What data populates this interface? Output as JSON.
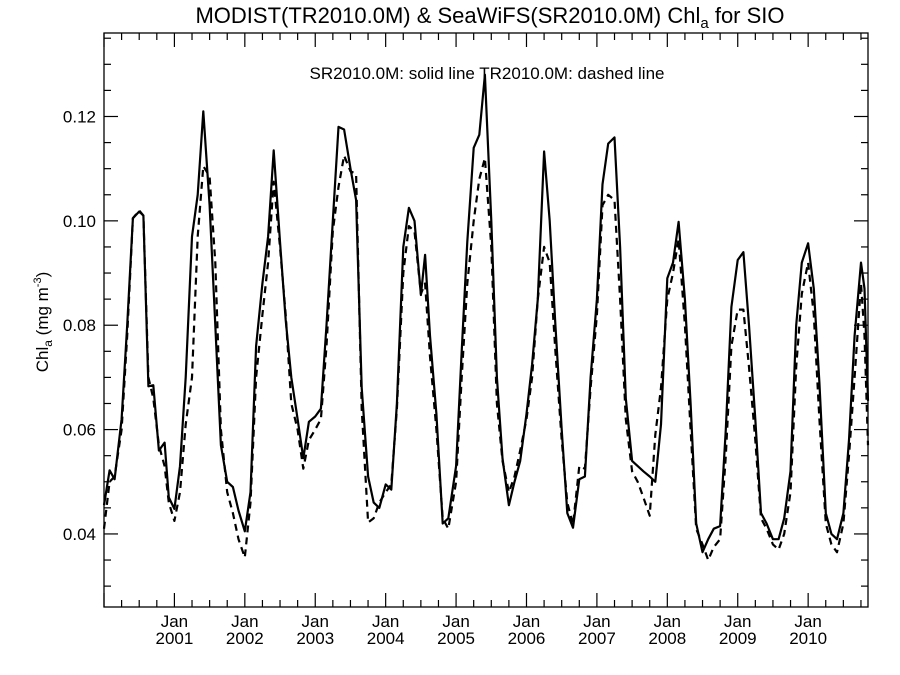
{
  "chart_data": {
    "type": "line",
    "title": {
      "main_prefix": "MODIST(TR2010.0M) & SeaWiFS(SR2010.0M)  Chl",
      "main_sub": "a",
      "main_suffix": " for SIO"
    },
    "legend_text": "SR2010.0M: solid line   TR2010.0M: dashed line",
    "ylabel": {
      "prefix": "Chl",
      "sub": "a",
      "mid": " (mg m",
      "sup": "-3",
      "suffix": ")"
    },
    "xlim": [
      2000.0,
      2010.85
    ],
    "ylim": [
      0.026,
      0.136
    ],
    "y_ticks": [
      0.04,
      0.06,
      0.08,
      0.1,
      0.12
    ],
    "y_tick_labels": [
      "0.04",
      "0.06",
      "0.08",
      "0.10",
      "0.12"
    ],
    "x_ticks": [
      {
        "x": 2001.0,
        "month": "Jan",
        "year": "2001"
      },
      {
        "x": 2002.0,
        "month": "Jan",
        "year": "2002"
      },
      {
        "x": 2003.0,
        "month": "Jan",
        "year": "2003"
      },
      {
        "x": 2004.0,
        "month": "Jan",
        "year": "2004"
      },
      {
        "x": 2005.0,
        "month": "Jan",
        "year": "2005"
      },
      {
        "x": 2006.0,
        "month": "Jan",
        "year": "2006"
      },
      {
        "x": 2007.0,
        "month": "Jan",
        "year": "2007"
      },
      {
        "x": 2008.0,
        "month": "Jan",
        "year": "2008"
      },
      {
        "x": 2009.0,
        "month": "Jan",
        "year": "2009"
      },
      {
        "x": 2010.0,
        "month": "Jan",
        "year": "2010"
      }
    ],
    "series": [
      {
        "id": "solid",
        "style": "solid",
        "color": "#000000",
        "points": [
          [
            2000.0,
            0.0455
          ],
          [
            2000.08,
            0.0522
          ],
          [
            2000.15,
            0.0505
          ],
          [
            2000.25,
            0.062
          ],
          [
            2000.33,
            0.08
          ],
          [
            2000.41,
            0.1005
          ],
          [
            2000.5,
            0.1018
          ],
          [
            2000.56,
            0.101
          ],
          [
            2000.63,
            0.0683
          ],
          [
            2000.7,
            0.0685
          ],
          [
            2000.78,
            0.056
          ],
          [
            2000.86,
            0.0575
          ],
          [
            2000.92,
            0.047
          ],
          [
            2001.0,
            0.0448
          ],
          [
            2001.08,
            0.053
          ],
          [
            2001.16,
            0.07
          ],
          [
            2001.25,
            0.097
          ],
          [
            2001.33,
            0.105
          ],
          [
            2001.41,
            0.121
          ],
          [
            2001.5,
            0.103
          ],
          [
            2001.58,
            0.08
          ],
          [
            2001.66,
            0.057
          ],
          [
            2001.75,
            0.05
          ],
          [
            2001.83,
            0.049
          ],
          [
            2001.91,
            0.0445
          ],
          [
            2002.0,
            0.0405
          ],
          [
            2002.08,
            0.048
          ],
          [
            2002.16,
            0.076
          ],
          [
            2002.25,
            0.088
          ],
          [
            2002.33,
            0.097
          ],
          [
            2002.41,
            0.1135
          ],
          [
            2002.5,
            0.096
          ],
          [
            2002.58,
            0.081
          ],
          [
            2002.66,
            0.07
          ],
          [
            2002.75,
            0.062
          ],
          [
            2002.83,
            0.0545
          ],
          [
            2002.91,
            0.0615
          ],
          [
            2003.0,
            0.0625
          ],
          [
            2003.08,
            0.064
          ],
          [
            2003.16,
            0.08
          ],
          [
            2003.25,
            0.1
          ],
          [
            2003.33,
            0.118
          ],
          [
            2003.41,
            0.1175
          ],
          [
            2003.5,
            0.11
          ],
          [
            2003.58,
            0.104
          ],
          [
            2003.66,
            0.068
          ],
          [
            2003.75,
            0.051
          ],
          [
            2003.83,
            0.046
          ],
          [
            2003.91,
            0.045
          ],
          [
            2004.0,
            0.0495
          ],
          [
            2004.08,
            0.0485
          ],
          [
            2004.16,
            0.065
          ],
          [
            2004.25,
            0.095
          ],
          [
            2004.33,
            0.1025
          ],
          [
            2004.41,
            0.1
          ],
          [
            2004.5,
            0.0858
          ],
          [
            2004.56,
            0.0935
          ],
          [
            2004.63,
            0.078
          ],
          [
            2004.72,
            0.063
          ],
          [
            2004.81,
            0.042
          ],
          [
            2004.89,
            0.043
          ],
          [
            2005.0,
            0.053
          ],
          [
            2005.08,
            0.075
          ],
          [
            2005.16,
            0.096
          ],
          [
            2005.25,
            0.114
          ],
          [
            2005.33,
            0.1165
          ],
          [
            2005.41,
            0.128
          ],
          [
            2005.5,
            0.1
          ],
          [
            2005.58,
            0.07
          ],
          [
            2005.66,
            0.0545
          ],
          [
            2005.75,
            0.0455
          ],
          [
            2005.83,
            0.05
          ],
          [
            2005.91,
            0.054
          ],
          [
            2006.0,
            0.063
          ],
          [
            2006.08,
            0.0725
          ],
          [
            2006.16,
            0.085
          ],
          [
            2006.25,
            0.1133
          ],
          [
            2006.33,
            0.1
          ],
          [
            2006.41,
            0.08
          ],
          [
            2006.5,
            0.06
          ],
          [
            2006.58,
            0.044
          ],
          [
            2006.66,
            0.0412
          ],
          [
            2006.75,
            0.0505
          ],
          [
            2006.83,
            0.051
          ],
          [
            2006.91,
            0.07
          ],
          [
            2007.0,
            0.085
          ],
          [
            2007.08,
            0.107
          ],
          [
            2007.16,
            0.1148
          ],
          [
            2007.25,
            0.116
          ],
          [
            2007.33,
            0.095
          ],
          [
            2007.41,
            0.066
          ],
          [
            2007.5,
            0.054
          ],
          [
            2007.58,
            0.053
          ],
          [
            2007.66,
            0.052
          ],
          [
            2007.75,
            0.051
          ],
          [
            2007.83,
            0.05
          ],
          [
            2007.91,
            0.061
          ],
          [
            2008.0,
            0.089
          ],
          [
            2008.08,
            0.092
          ],
          [
            2008.16,
            0.0998
          ],
          [
            2008.25,
            0.085
          ],
          [
            2008.33,
            0.065
          ],
          [
            2008.41,
            0.042
          ],
          [
            2008.5,
            0.0365
          ],
          [
            2008.58,
            0.039
          ],
          [
            2008.66,
            0.041
          ],
          [
            2008.75,
            0.0415
          ],
          [
            2008.83,
            0.06
          ],
          [
            2008.91,
            0.0835
          ],
          [
            2009.0,
            0.0925
          ],
          [
            2009.08,
            0.094
          ],
          [
            2009.16,
            0.08
          ],
          [
            2009.25,
            0.062
          ],
          [
            2009.33,
            0.044
          ],
          [
            2009.41,
            0.042
          ],
          [
            2009.5,
            0.039
          ],
          [
            2009.58,
            0.039
          ],
          [
            2009.66,
            0.043
          ],
          [
            2009.75,
            0.052
          ],
          [
            2009.83,
            0.08
          ],
          [
            2009.91,
            0.092
          ],
          [
            2010.0,
            0.0957
          ],
          [
            2010.08,
            0.087
          ],
          [
            2010.16,
            0.069
          ],
          [
            2010.25,
            0.044
          ],
          [
            2010.33,
            0.04
          ],
          [
            2010.41,
            0.039
          ],
          [
            2010.5,
            0.044
          ],
          [
            2010.58,
            0.058
          ],
          [
            2010.66,
            0.078
          ],
          [
            2010.75,
            0.092
          ],
          [
            2010.8,
            0.087
          ],
          [
            2010.85,
            0.0655
          ]
        ]
      },
      {
        "id": "dashed",
        "style": "dashed",
        "color": "#000000",
        "points": [
          [
            2000.0,
            0.041
          ],
          [
            2000.08,
            0.05
          ],
          [
            2000.15,
            0.051
          ],
          [
            2000.25,
            0.06
          ],
          [
            2000.33,
            0.078
          ],
          [
            2000.41,
            0.1005
          ],
          [
            2000.5,
            0.102
          ],
          [
            2000.56,
            0.101
          ],
          [
            2000.63,
            0.07
          ],
          [
            2000.7,
            0.066
          ],
          [
            2000.78,
            0.057
          ],
          [
            2000.86,
            0.053
          ],
          [
            2000.92,
            0.046
          ],
          [
            2001.0,
            0.0425
          ],
          [
            2001.08,
            0.048
          ],
          [
            2001.16,
            0.061
          ],
          [
            2001.25,
            0.07
          ],
          [
            2001.33,
            0.097
          ],
          [
            2001.41,
            0.1105
          ],
          [
            2001.5,
            0.1085
          ],
          [
            2001.58,
            0.092
          ],
          [
            2001.66,
            0.06
          ],
          [
            2001.75,
            0.048
          ],
          [
            2001.83,
            0.044
          ],
          [
            2001.91,
            0.039
          ],
          [
            2002.0,
            0.0355
          ],
          [
            2002.08,
            0.046
          ],
          [
            2002.16,
            0.07
          ],
          [
            2002.25,
            0.082
          ],
          [
            2002.33,
            0.092
          ],
          [
            2002.41,
            0.1075
          ],
          [
            2002.5,
            0.095
          ],
          [
            2002.58,
            0.082
          ],
          [
            2002.66,
            0.065
          ],
          [
            2002.75,
            0.06
          ],
          [
            2002.83,
            0.0525
          ],
          [
            2002.91,
            0.058
          ],
          [
            2003.0,
            0.06
          ],
          [
            2003.08,
            0.062
          ],
          [
            2003.16,
            0.076
          ],
          [
            2003.25,
            0.098
          ],
          [
            2003.33,
            0.1065
          ],
          [
            2003.41,
            0.1125
          ],
          [
            2003.5,
            0.1095
          ],
          [
            2003.58,
            0.109
          ],
          [
            2003.66,
            0.064
          ],
          [
            2003.75,
            0.0422
          ],
          [
            2003.83,
            0.043
          ],
          [
            2003.91,
            0.046
          ],
          [
            2004.0,
            0.048
          ],
          [
            2004.08,
            0.0495
          ],
          [
            2004.16,
            0.064
          ],
          [
            2004.25,
            0.09
          ],
          [
            2004.33,
            0.099
          ],
          [
            2004.41,
            0.098
          ],
          [
            2004.5,
            0.086
          ],
          [
            2004.56,
            0.088
          ],
          [
            2004.63,
            0.074
          ],
          [
            2004.72,
            0.06
          ],
          [
            2004.81,
            0.043
          ],
          [
            2004.89,
            0.041
          ],
          [
            2005.0,
            0.05
          ],
          [
            2005.08,
            0.07
          ],
          [
            2005.16,
            0.088
          ],
          [
            2005.25,
            0.1
          ],
          [
            2005.33,
            0.108
          ],
          [
            2005.41,
            0.112
          ],
          [
            2005.5,
            0.095
          ],
          [
            2005.58,
            0.065
          ],
          [
            2005.66,
            0.054
          ],
          [
            2005.75,
            0.048
          ],
          [
            2005.83,
            0.051
          ],
          [
            2005.91,
            0.056
          ],
          [
            2006.0,
            0.062
          ],
          [
            2006.08,
            0.07
          ],
          [
            2006.16,
            0.085
          ],
          [
            2006.25,
            0.095
          ],
          [
            2006.33,
            0.092
          ],
          [
            2006.41,
            0.075
          ],
          [
            2006.5,
            0.058
          ],
          [
            2006.58,
            0.046
          ],
          [
            2006.66,
            0.0418
          ],
          [
            2006.75,
            0.053
          ],
          [
            2006.83,
            0.0525
          ],
          [
            2006.91,
            0.068
          ],
          [
            2007.0,
            0.082
          ],
          [
            2007.08,
            0.103
          ],
          [
            2007.16,
            0.105
          ],
          [
            2007.25,
            0.104
          ],
          [
            2007.33,
            0.085
          ],
          [
            2007.41,
            0.062
          ],
          [
            2007.5,
            0.052
          ],
          [
            2007.58,
            0.05
          ],
          [
            2007.66,
            0.047
          ],
          [
            2007.75,
            0.0435
          ],
          [
            2007.83,
            0.059
          ],
          [
            2007.91,
            0.068
          ],
          [
            2008.0,
            0.085
          ],
          [
            2008.08,
            0.09
          ],
          [
            2008.16,
            0.0965
          ],
          [
            2008.25,
            0.08
          ],
          [
            2008.33,
            0.06
          ],
          [
            2008.41,
            0.041
          ],
          [
            2008.5,
            0.038
          ],
          [
            2008.58,
            0.035
          ],
          [
            2008.66,
            0.0375
          ],
          [
            2008.75,
            0.039
          ],
          [
            2008.83,
            0.055
          ],
          [
            2008.91,
            0.076
          ],
          [
            2009.0,
            0.083
          ],
          [
            2009.08,
            0.083
          ],
          [
            2009.16,
            0.072
          ],
          [
            2009.25,
            0.058
          ],
          [
            2009.33,
            0.043
          ],
          [
            2009.41,
            0.041
          ],
          [
            2009.5,
            0.038
          ],
          [
            2009.58,
            0.037
          ],
          [
            2009.66,
            0.04
          ],
          [
            2009.75,
            0.048
          ],
          [
            2009.83,
            0.072
          ],
          [
            2009.91,
            0.086
          ],
          [
            2010.0,
            0.092
          ],
          [
            2010.08,
            0.082
          ],
          [
            2010.16,
            0.062
          ],
          [
            2010.25,
            0.042
          ],
          [
            2010.33,
            0.038
          ],
          [
            2010.41,
            0.0365
          ],
          [
            2010.5,
            0.042
          ],
          [
            2010.58,
            0.055
          ],
          [
            2010.66,
            0.07
          ],
          [
            2010.75,
            0.088
          ],
          [
            2010.8,
            0.078
          ],
          [
            2010.85,
            0.057
          ]
        ]
      }
    ]
  }
}
